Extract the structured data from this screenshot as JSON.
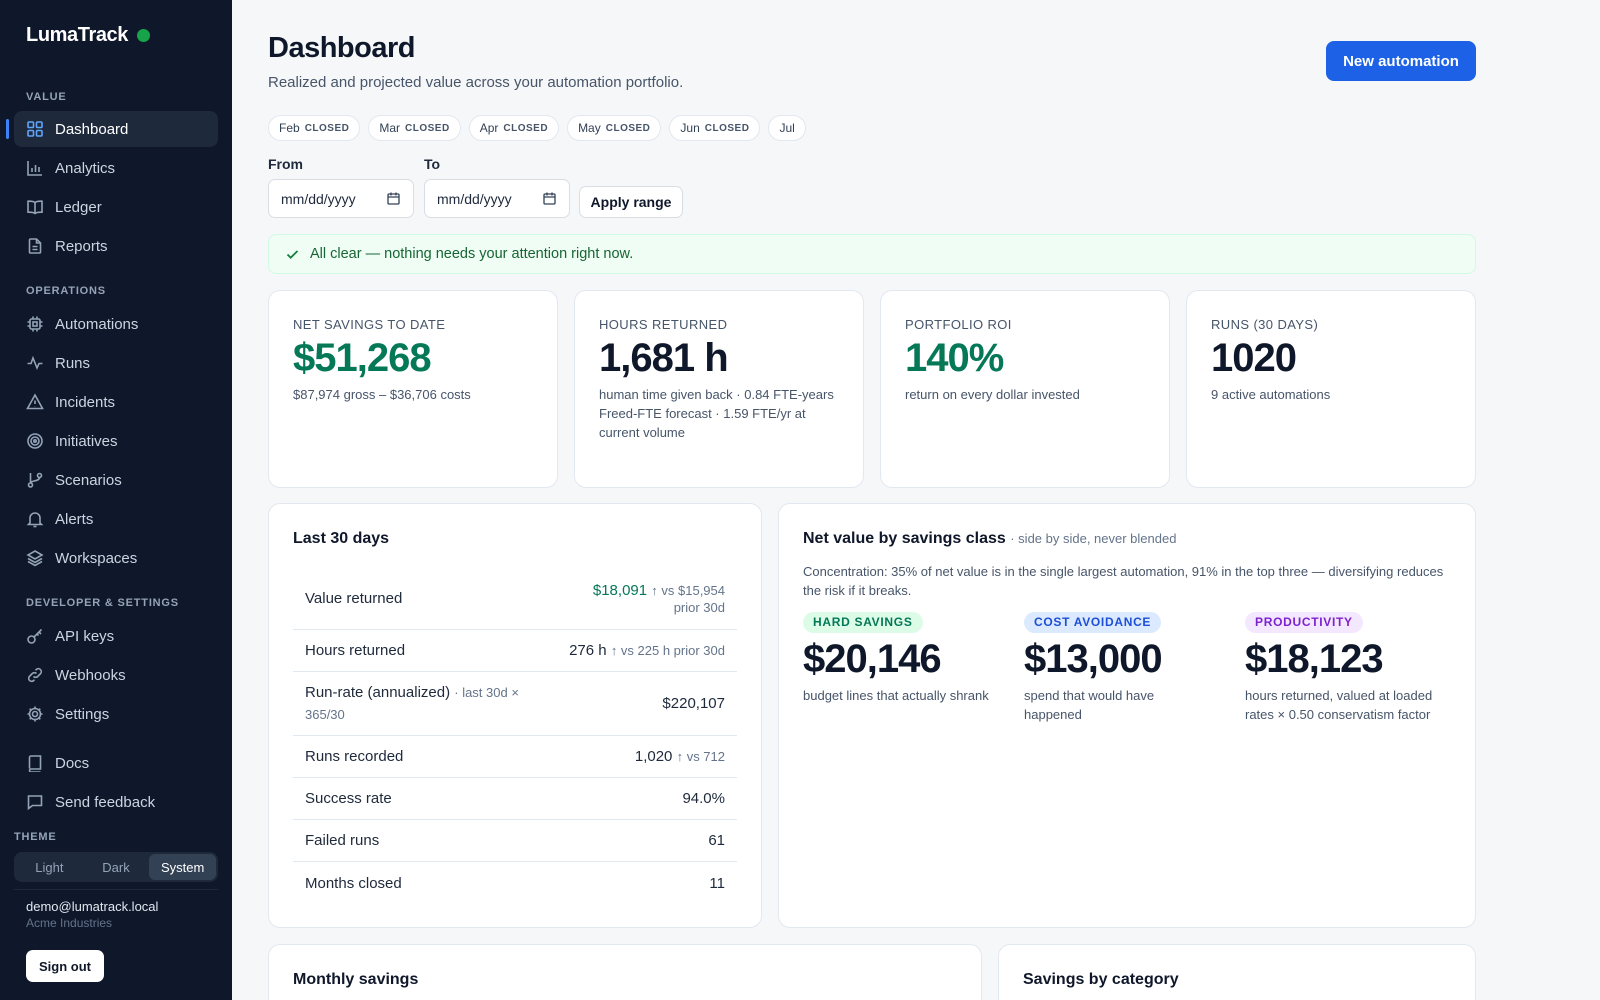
{
  "app": {
    "name": "LumaTrack",
    "status_color": "#16a34a"
  },
  "sidebar": {
    "sections": [
      {
        "title": "VALUE"
      },
      {
        "title": "OPERATIONS"
      },
      {
        "title": "DEVELOPER & SETTINGS"
      }
    ],
    "items": [
      {
        "label": "Dashboard",
        "icon": "dashboard-icon",
        "active": true
      },
      {
        "label": "Analytics",
        "icon": "bar-chart-icon"
      },
      {
        "label": "Ledger",
        "icon": "book-open-icon"
      },
      {
        "label": "Reports",
        "icon": "file-text-icon"
      },
      {
        "label": "Automations",
        "icon": "cpu-icon"
      },
      {
        "label": "Runs",
        "icon": "activity-icon"
      },
      {
        "label": "Incidents",
        "icon": "warning-triangle-icon"
      },
      {
        "label": "Initiatives",
        "icon": "target-icon"
      },
      {
        "label": "Scenarios",
        "icon": "git-branch-icon"
      },
      {
        "label": "Alerts",
        "icon": "bell-icon"
      },
      {
        "label": "Workspaces",
        "icon": "layers-icon"
      },
      {
        "label": "API keys",
        "icon": "key-icon"
      },
      {
        "label": "Webhooks",
        "icon": "link-icon"
      },
      {
        "label": "Settings",
        "icon": "gear-icon"
      },
      {
        "label": "Docs",
        "icon": "book-icon"
      },
      {
        "label": "Send feedback",
        "icon": "message-icon"
      }
    ],
    "theme": {
      "label": "THEME",
      "options": [
        "Light",
        "Dark",
        "System"
      ],
      "selected": "System"
    },
    "user": {
      "email": "demo@lumatrack.local",
      "org": "Acme Industries"
    },
    "signout_label": "Sign out"
  },
  "header": {
    "title": "Dashboard",
    "subtitle": "Realized and projected value across your automation portfolio.",
    "primary_action": "New automation"
  },
  "months": [
    {
      "label": "Feb",
      "tag": "CLOSED"
    },
    {
      "label": "Mar",
      "tag": "CLOSED"
    },
    {
      "label": "Apr",
      "tag": "CLOSED"
    },
    {
      "label": "May",
      "tag": "CLOSED"
    },
    {
      "label": "Jun",
      "tag": "CLOSED"
    },
    {
      "label": "Jul",
      "tag": ""
    }
  ],
  "range": {
    "from_label": "From",
    "to_label": "To",
    "from_placeholder": "mm/dd/yyyy",
    "to_placeholder": "mm/dd/yyyy",
    "apply_label": "Apply range"
  },
  "alert": {
    "text": "All clear — nothing needs your attention right now.",
    "color": "#166534"
  },
  "kpis": [
    {
      "label": "Net savings to date",
      "value": "$51,268",
      "notes": [
        "$87,974 gross – $36,706 costs"
      ],
      "accent": "#047857"
    },
    {
      "label": "Hours returned",
      "value": "1,681 h",
      "notes": [
        "human time given back · 0.84 FTE-years",
        "Freed-FTE forecast · 1.59 FTE/yr at current volume"
      ]
    },
    {
      "label": "Portfolio ROI",
      "value": "140%",
      "notes": [
        "return on every dollar invested"
      ],
      "accent": "#047857"
    },
    {
      "label": "Runs (30 days)",
      "value": "1020",
      "notes": [
        "9 active automations"
      ]
    }
  ],
  "last30": {
    "title": "Last 30 days",
    "rows": [
      {
        "label": "Value returned",
        "hint": "",
        "value": "$18,091",
        "cmp": "↑ vs $15,954 prior 30d",
        "positive": true
      },
      {
        "label": "Hours returned",
        "hint": "",
        "value": "276 h",
        "cmp": "↑ vs 225 h prior 30d"
      },
      {
        "label": "Run-rate (annualized)",
        "hint": "· last 30d × 365/30",
        "value": "$220,107",
        "cmp": ""
      },
      {
        "label": "Runs recorded",
        "hint": "",
        "value": "1,020",
        "cmp": "↑ vs 712"
      },
      {
        "label": "Success rate",
        "hint": "",
        "value": "94.0%",
        "cmp": ""
      },
      {
        "label": "Failed runs",
        "hint": "",
        "value": "61",
        "cmp": ""
      },
      {
        "label": "Months closed",
        "hint": "",
        "value": "11",
        "cmp": ""
      }
    ]
  },
  "net_value": {
    "title": "Net value by savings class",
    "title_sub": "· side by side, never blended",
    "concentration": "Concentration: 35% of net value is in the single largest automation, 91% in the top three — diversifying reduces the risk if it breaks.",
    "classes": [
      {
        "badge": "HARD SAVINGS",
        "value": "$20,146",
        "desc": "budget lines that actually shrank",
        "fg": "#047857",
        "bg": "#dcfce7"
      },
      {
        "badge": "COST AVOIDANCE",
        "value": "$13,000",
        "desc": "spend that would have happened",
        "fg": "#1d4ed8",
        "bg": "#dbeafe"
      },
      {
        "badge": "PRODUCTIVITY",
        "value": "$18,123",
        "desc": "hours returned, valued at loaded rates × 0.50 conservatism factor",
        "fg": "#7e22ce",
        "bg": "#f3e8ff"
      }
    ]
  },
  "bottom": {
    "monthly_title": "Monthly savings",
    "category_title": "Savings by category"
  }
}
